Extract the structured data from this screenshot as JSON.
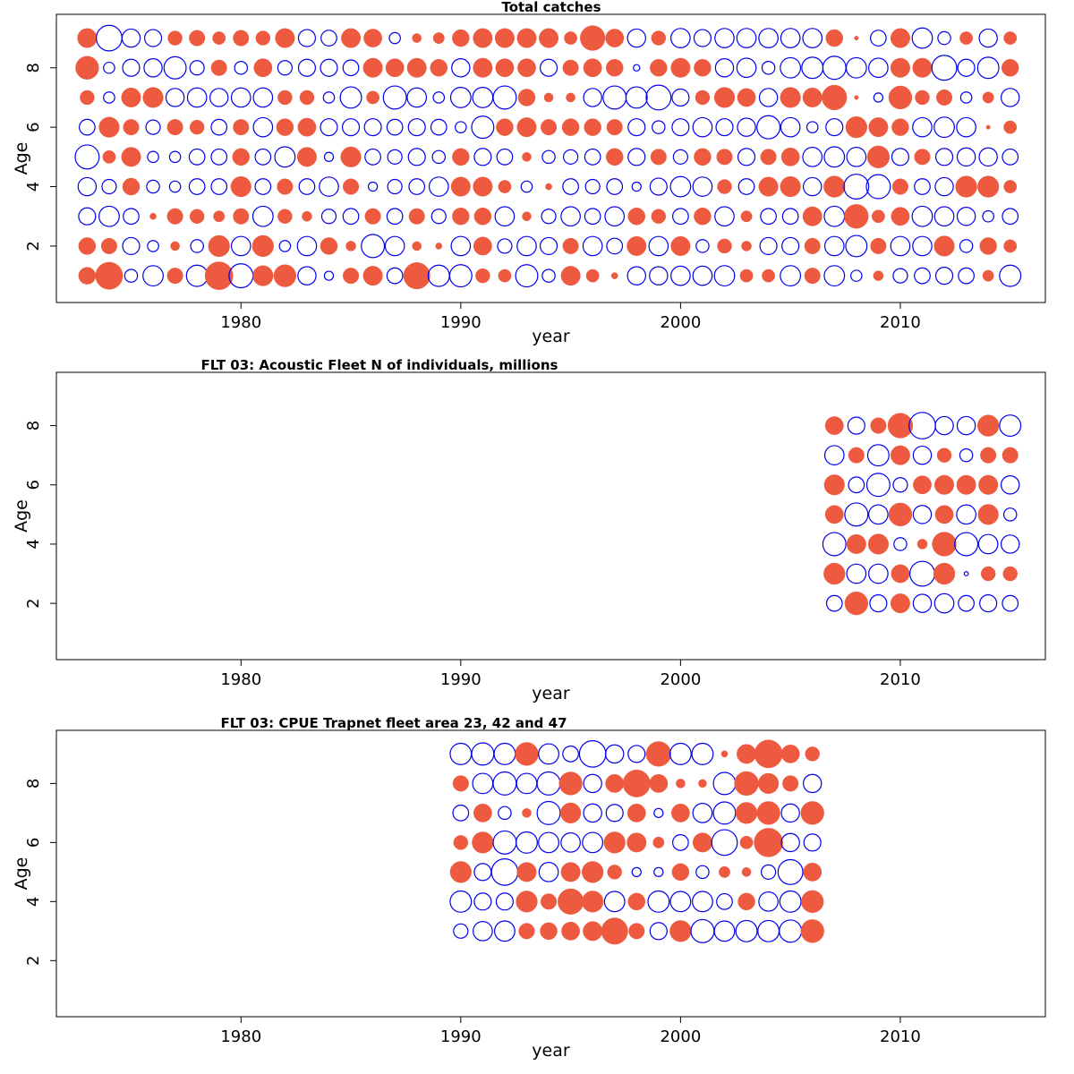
{
  "colors": {
    "positive": "#EE5A3F",
    "negative": "#0000EE",
    "frame": "#000000"
  },
  "chart_data": [
    {
      "type": "scatter",
      "title": "Total catches",
      "xlabel": "year",
      "ylabel": "Age",
      "xlim": [
        1971.6,
        2016.6
      ],
      "ylim": [
        0.1,
        9.8
      ],
      "xticks": [
        1980,
        1990,
        2000,
        2010
      ],
      "yticks": [
        2,
        4,
        6,
        8
      ],
      "grid": false,
      "x": [
        1973,
        1974,
        1975,
        1976,
        1977,
        1978,
        1979,
        1980,
        1981,
        1982,
        1983,
        1984,
        1985,
        1986,
        1987,
        1988,
        1989,
        1990,
        1991,
        1992,
        1993,
        1994,
        1995,
        1996,
        1997,
        1998,
        1999,
        2000,
        2001,
        2002,
        2003,
        2004,
        2005,
        2006,
        2007,
        2008,
        2009,
        2010,
        2011,
        2012,
        2013,
        2014,
        2015
      ],
      "ages": [
        1,
        2,
        3,
        4,
        5,
        6,
        7,
        8,
        9
      ],
      "residuals": [
        [
          0.35,
          0.9,
          -0.2,
          -0.5,
          0.3,
          -0.55,
          0.95,
          -0.7,
          0.5,
          0.6,
          -0.4,
          -0.1,
          0.3,
          0.45,
          -0.3,
          0.85,
          -0.55,
          -0.6,
          0.25,
          0.2,
          -0.6,
          -0.2,
          0.45,
          0.2,
          0.05,
          -0.4,
          -0.4,
          -0.45,
          -0.45,
          -0.5,
          0.2,
          0.2,
          -0.5,
          0.3,
          -0.5,
          -0.15,
          0.12,
          -0.25,
          -0.3,
          -0.35,
          -0.3,
          0.15,
          -0.55
        ],
        [
          0.35,
          0.3,
          -0.35,
          -0.15,
          0.1,
          -0.2,
          0.55,
          -0.45,
          0.55,
          -0.15,
          -0.45,
          0.35,
          0.12,
          -0.65,
          -0.45,
          0.1,
          0.05,
          -0.45,
          0.4,
          -0.25,
          -0.45,
          -0.35,
          0.3,
          -0.45,
          -0.3,
          0.45,
          -0.45,
          0.45,
          -0.2,
          0.25,
          0.12,
          -0.35,
          -0.35,
          0.3,
          -0.45,
          -0.55,
          0.3,
          -0.45,
          -0.45,
          0.5,
          -0.2,
          0.35,
          0.2
        ],
        [
          -0.35,
          -0.5,
          -0.3,
          0.05,
          0.3,
          0.25,
          0.15,
          0.3,
          -0.5,
          0.25,
          0.12,
          -0.25,
          -0.3,
          0.3,
          -0.3,
          0.3,
          -0.25,
          0.35,
          0.35,
          -0.45,
          0.1,
          -0.25,
          -0.45,
          -0.3,
          -0.45,
          0.35,
          0.25,
          -0.3,
          0.35,
          -0.45,
          0.15,
          -0.3,
          -0.3,
          0.45,
          -0.5,
          0.7,
          0.2,
          0.4,
          -0.5,
          -0.45,
          -0.4,
          -0.15,
          -0.3
        ],
        [
          -0.4,
          -0.25,
          0.35,
          -0.2,
          -0.15,
          -0.3,
          -0.3,
          0.5,
          -0.3,
          0.3,
          -0.3,
          -0.45,
          0.3,
          -0.1,
          -0.25,
          -0.3,
          -0.45,
          0.45,
          0.45,
          0.2,
          -0.15,
          0.05,
          -0.3,
          -0.25,
          -0.3,
          -0.1,
          -0.35,
          -0.5,
          -0.45,
          0.25,
          -0.3,
          0.45,
          0.5,
          -0.4,
          0.55,
          -0.75,
          -0.7,
          0.3,
          -0.3,
          -0.4,
          0.55,
          0.55,
          0.2
        ],
        [
          -0.7,
          0.2,
          0.45,
          -0.15,
          -0.15,
          -0.3,
          -0.3,
          0.35,
          -0.3,
          -0.5,
          0.45,
          -0.1,
          0.5,
          -0.3,
          -0.25,
          -0.35,
          -0.2,
          0.35,
          -0.35,
          -0.3,
          0.1,
          -0.2,
          -0.25,
          -0.3,
          0.35,
          -0.35,
          0.3,
          -0.25,
          0.35,
          0.3,
          -0.35,
          0.3,
          0.4,
          -0.45,
          -0.5,
          -0.45,
          0.6,
          -0.35,
          0.3,
          -0.35,
          -0.4,
          -0.4,
          -0.3
        ],
        [
          -0.3,
          0.5,
          0.3,
          -0.25,
          0.3,
          0.25,
          -0.3,
          0.3,
          -0.45,
          0.35,
          0.4,
          -0.35,
          -0.35,
          -0.35,
          -0.3,
          -0.35,
          -0.3,
          -0.15,
          -0.6,
          0.35,
          0.45,
          0.3,
          0.35,
          0.35,
          0.3,
          -0.35,
          -0.2,
          -0.35,
          -0.45,
          -0.35,
          -0.4,
          -0.65,
          -0.45,
          -0.15,
          -0.35,
          0.55,
          0.45,
          0.35,
          -0.45,
          -0.5,
          -0.45,
          0.02,
          0.2
        ],
        [
          0.25,
          -0.15,
          0.45,
          0.5,
          -0.4,
          -0.45,
          -0.4,
          -0.45,
          -0.45,
          0.25,
          0.25,
          -0.15,
          -0.55,
          0.2,
          -0.65,
          -0.45,
          -0.15,
          -0.5,
          -0.5,
          -0.65,
          0.35,
          0.1,
          0.1,
          -0.4,
          -0.65,
          -0.55,
          -0.75,
          -0.35,
          0.25,
          0.5,
          0.4,
          -0.4,
          0.5,
          0.45,
          0.75,
          0.02,
          -0.1,
          0.65,
          0.25,
          0.3,
          -0.15,
          0.15,
          -0.4
        ],
        [
          0.65,
          -0.15,
          -0.35,
          -0.4,
          -0.6,
          -0.25,
          0.3,
          -0.2,
          0.4,
          -0.25,
          -0.35,
          -0.35,
          -0.3,
          0.45,
          0.4,
          0.45,
          0.35,
          -0.4,
          0.45,
          0.4,
          0.4,
          -0.35,
          0.3,
          0.4,
          0.35,
          -0.05,
          0.35,
          0.45,
          0.35,
          -0.4,
          -0.45,
          -0.2,
          -0.5,
          -0.55,
          -0.65,
          -0.5,
          -0.45,
          0.45,
          0.45,
          -0.75,
          -0.35,
          -0.55,
          0.35
        ],
        [
          0.45,
          -0.8,
          -0.4,
          -0.35,
          0.25,
          0.3,
          0.2,
          0.3,
          0.25,
          0.45,
          -0.35,
          -0.3,
          0.45,
          0.4,
          -0.15,
          0.1,
          0.15,
          0.35,
          0.45,
          0.45,
          0.45,
          0.45,
          0.2,
          0.75,
          0.4,
          -0.4,
          0.25,
          -0.45,
          -0.35,
          -0.45,
          -0.45,
          -0.45,
          -0.45,
          -0.45,
          0.35,
          0.02,
          -0.3,
          0.45,
          -0.5,
          -0.2,
          0.2,
          -0.4,
          0.2
        ]
      ]
    },
    {
      "type": "scatter",
      "title": "FLT 03: Acoustic Fleet   N of individuals, millions",
      "xlabel": "year",
      "ylabel": "Age",
      "xlim": [
        1971.6,
        2016.6
      ],
      "ylim": [
        0.1,
        9.8
      ],
      "xticks": [
        1980,
        1990,
        2000,
        2010
      ],
      "yticks": [
        2,
        4,
        6,
        8
      ],
      "grid": false,
      "x": [
        2007,
        2008,
        2009,
        2010,
        2011,
        2012,
        2013,
        2014,
        2015
      ],
      "ages": [
        2,
        3,
        4,
        5,
        6,
        7,
        8
      ],
      "residuals": [
        [
          -0.3,
          0.65,
          -0.35,
          0.45,
          -0.4,
          -0.45,
          -0.3,
          -0.35,
          -0.3
        ],
        [
          0.55,
          -0.45,
          -0.45,
          0.4,
          -0.75,
          0.55,
          -0.02,
          0.25,
          0.25
        ],
        [
          -0.65,
          0.45,
          0.5,
          -0.2,
          0.12,
          0.7,
          -0.65,
          -0.45,
          -0.4
        ],
        [
          0.4,
          -0.65,
          -0.45,
          0.65,
          -0.4,
          0.4,
          -0.45,
          0.5,
          -0.2
        ],
        [
          0.5,
          -0.3,
          -0.65,
          -0.25,
          0.4,
          0.45,
          0.45,
          0.45,
          -0.4
        ],
        [
          -0.45,
          0.3,
          -0.55,
          0.45,
          -0.4,
          0.25,
          -0.2,
          0.3,
          0.3
        ],
        [
          0.4,
          -0.35,
          0.3,
          0.75,
          -0.85,
          -0.4,
          -0.4,
          0.55,
          -0.55
        ]
      ]
    },
    {
      "type": "scatter",
      "title": "FLT 03: CPUE Trapnet fleet area 23, 42 and 47",
      "xlabel": "year",
      "ylabel": "Age",
      "xlim": [
        1971.6,
        2016.6
      ],
      "ylim": [
        0.1,
        9.8
      ],
      "xticks": [
        1980,
        1990,
        2000,
        2010
      ],
      "yticks": [
        2,
        4,
        6,
        8
      ],
      "grid": false,
      "x": [
        1990,
        1991,
        1992,
        1993,
        1994,
        1995,
        1996,
        1997,
        1998,
        1999,
        2000,
        2001,
        2002,
        2003,
        2004,
        2005,
        2006
      ],
      "ages": [
        3,
        4,
        5,
        6,
        7,
        8,
        9
      ],
      "residuals": [
        [
          -0.25,
          -0.45,
          -0.5,
          0.3,
          0.35,
          0.4,
          0.45,
          0.85,
          0.3,
          -0.35,
          0.55,
          -0.65,
          -0.5,
          -0.55,
          -0.55,
          -0.6,
          0.65
        ],
        [
          -0.55,
          -0.35,
          -0.35,
          0.55,
          0.3,
          0.8,
          0.55,
          -0.5,
          0.35,
          -0.55,
          -0.5,
          -0.5,
          -0.3,
          0.35,
          -0.45,
          -0.55,
          0.6
        ],
        [
          0.55,
          -0.35,
          -0.85,
          0.45,
          -0.45,
          0.45,
          0.55,
          0.25,
          -0.1,
          -0.1,
          0.35,
          -0.2,
          0.15,
          0.1,
          -0.25,
          -0.75,
          0.4
        ],
        [
          0.25,
          0.55,
          -0.65,
          -0.55,
          -0.5,
          -0.45,
          -0.5,
          0.55,
          0.45,
          0.15,
          -0.3,
          0.45,
          -0.8,
          0.2,
          1.0,
          -0.4,
          -0.35
        ],
        [
          -0.3,
          0.4,
          -0.2,
          0.1,
          -0.65,
          0.5,
          -0.4,
          -0.35,
          0.4,
          -0.1,
          0.4,
          -0.45,
          -0.6,
          0.55,
          0.65,
          -0.4,
          0.65
        ],
        [
          0.3,
          -0.5,
          -0.65,
          -0.5,
          -0.65,
          0.65,
          -0.4,
          0.4,
          0.9,
          0.4,
          0.1,
          0.08,
          -0.6,
          0.7,
          0.5,
          0.3,
          -0.4
        ],
        [
          -0.55,
          -0.6,
          -0.55,
          0.65,
          -0.5,
          -0.3,
          -0.85,
          -0.4,
          -0.35,
          0.75,
          -0.55,
          -0.55,
          0.05,
          0.45,
          0.95,
          0.4,
          0.25
        ]
      ]
    }
  ]
}
